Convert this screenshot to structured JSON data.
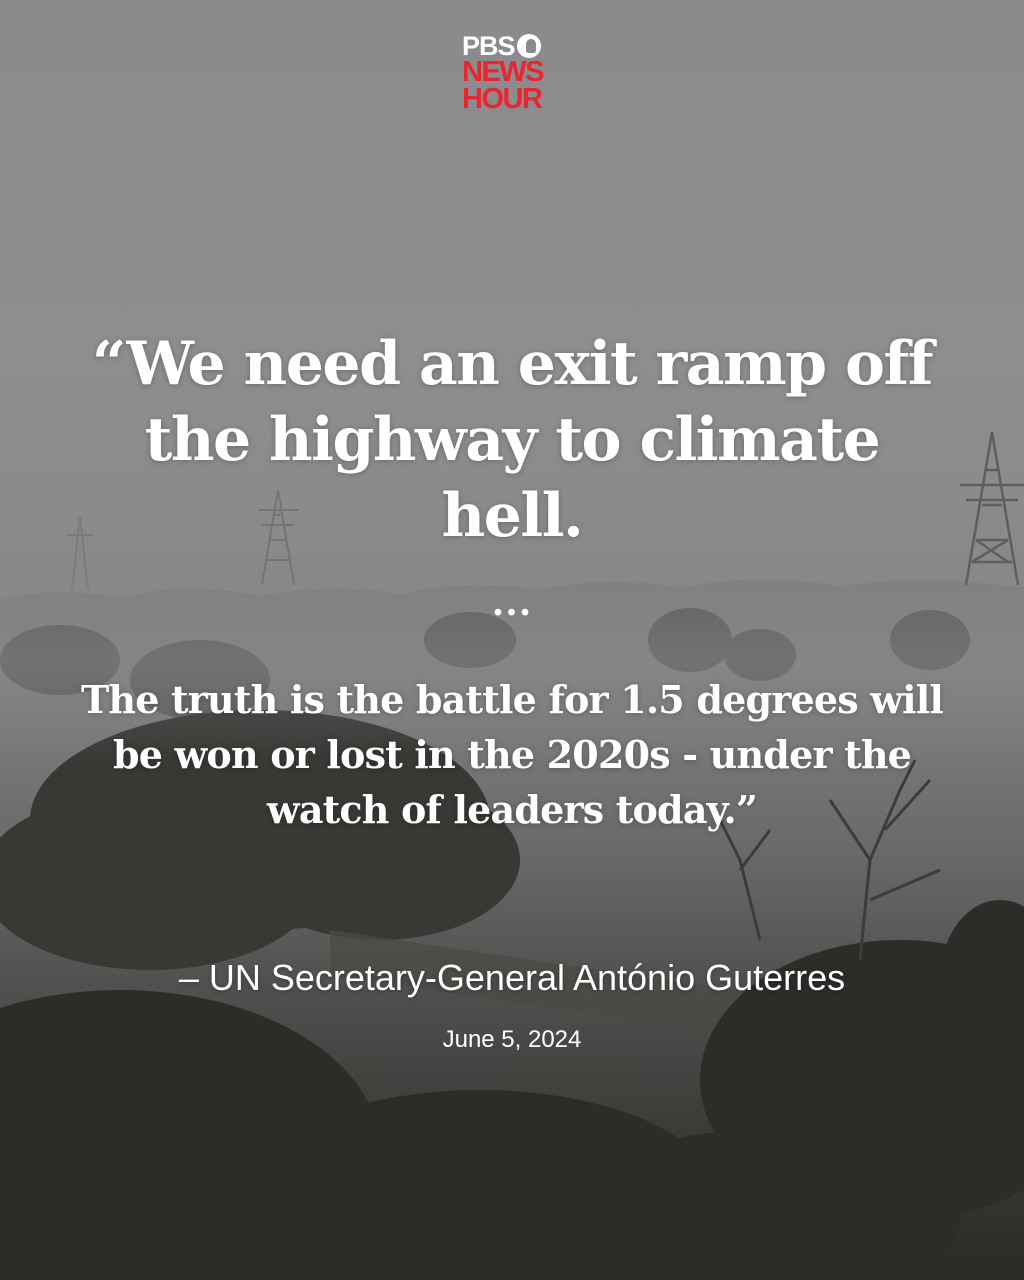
{
  "logo": {
    "line1": "PBS",
    "line2": "NEWS",
    "line3": "HOUR",
    "accent_color": "#e8262d"
  },
  "quote": {
    "lead": "“We need an exit ramp off the highway to climate hell.",
    "ellipsis": "...",
    "body": "The truth is the battle for 1.5 degrees will be won or lost in the 2020s - under the watch of leaders today.”"
  },
  "attribution": "– UN Secretary-General António Guterres",
  "date": "June 5, 2024",
  "background": {
    "icons": [
      "transmission-tower-icon",
      "tree-icon",
      "pipeline-icon"
    ]
  }
}
